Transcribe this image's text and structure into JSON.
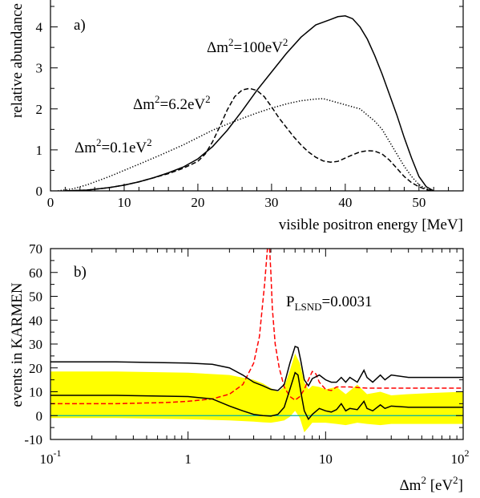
{
  "chart_data": [
    {
      "type": "line",
      "panel_label": "a)",
      "xlabel": "visible positron energy [MeV]",
      "ylabel": "relative abundance",
      "xlim": [
        0,
        56
      ],
      "ylim": [
        0,
        4.5
      ],
      "xticks": [
        0,
        10,
        20,
        30,
        40,
        50
      ],
      "yticks": [
        0,
        1,
        2,
        3,
        4
      ],
      "grid": false,
      "series": [
        {
          "name": "Δm²=100eV²",
          "label_parts": {
            "base": "Δm",
            "sup": "2",
            "mid": "=100eV",
            "sup2": "2"
          },
          "color": "#000000",
          "dash": "solid",
          "x": [
            2,
            5,
            8,
            10,
            12,
            14,
            16,
            18,
            20,
            22,
            24,
            26,
            28,
            30,
            32,
            34,
            36,
            38,
            39,
            40,
            41,
            42,
            43,
            44,
            45,
            46,
            47,
            48,
            49,
            50,
            51,
            52
          ],
          "y": [
            0,
            0.02,
            0.08,
            0.14,
            0.22,
            0.32,
            0.44,
            0.58,
            0.78,
            1.08,
            1.48,
            1.95,
            2.45,
            2.9,
            3.35,
            3.75,
            4.05,
            4.18,
            4.25,
            4.27,
            4.2,
            4.0,
            3.7,
            3.3,
            2.85,
            2.35,
            1.85,
            1.3,
            0.8,
            0.35,
            0.1,
            0
          ]
        },
        {
          "name": "Δm²=6.2eV²",
          "label_parts": {
            "base": "Δm",
            "sup": "2",
            "mid": "=6.2eV",
            "sup2": "2"
          },
          "color": "#000000",
          "dash": "dashed",
          "x": [
            2,
            5,
            8,
            10,
            12,
            14,
            16,
            18,
            20,
            21,
            22,
            23,
            24,
            25,
            26,
            27,
            28,
            29,
            30,
            31,
            32,
            33,
            34,
            35,
            36,
            37,
            38,
            39,
            40,
            41,
            42,
            43,
            44,
            45,
            46,
            47,
            48,
            49,
            50,
            51,
            52
          ],
          "y": [
            0,
            0.02,
            0.08,
            0.14,
            0.22,
            0.32,
            0.42,
            0.55,
            0.72,
            0.9,
            1.2,
            1.58,
            1.98,
            2.3,
            2.46,
            2.5,
            2.45,
            2.3,
            2.05,
            1.78,
            1.55,
            1.32,
            1.12,
            0.95,
            0.82,
            0.73,
            0.7,
            0.72,
            0.8,
            0.88,
            0.95,
            0.98,
            0.97,
            0.9,
            0.75,
            0.55,
            0.35,
            0.2,
            0.1,
            0.03,
            0
          ]
        },
        {
          "name": "Δm²=0.1eV²",
          "label_parts": {
            "base": "Δm",
            "sup": "2",
            "mid": "=0.1eV",
            "sup2": "2"
          },
          "color": "#000000",
          "dash": "dotted",
          "x": [
            1,
            3,
            5,
            8,
            10,
            12,
            15,
            18,
            20,
            22,
            25,
            28,
            30,
            32,
            34,
            36,
            37,
            38,
            40,
            42,
            44,
            45,
            46,
            47,
            48,
            49,
            50,
            51,
            52
          ],
          "y": [
            0,
            0.05,
            0.15,
            0.35,
            0.5,
            0.65,
            0.88,
            1.12,
            1.3,
            1.48,
            1.7,
            1.9,
            2.02,
            2.12,
            2.2,
            2.24,
            2.25,
            2.2,
            2.1,
            2.0,
            1.7,
            1.5,
            1.2,
            0.9,
            0.6,
            0.35,
            0.15,
            0.05,
            0
          ]
        }
      ]
    },
    {
      "type": "line",
      "panel_label": "b)",
      "xlabel_parts": {
        "base": "Δm",
        "sup": "2",
        "mid": " [eV",
        "sup2": "2",
        "tail": "]"
      },
      "ylabel": "events in KARMEN",
      "x_scale": "log",
      "xlim": [
        0.1,
        100
      ],
      "ylim": [
        -10,
        70
      ],
      "xtick_labels": [
        {
          "value": 0.1,
          "base": "10",
          "sup": "-1"
        },
        {
          "value": 1,
          "base": "1",
          "sup": ""
        },
        {
          "value": 10,
          "base": "10",
          "sup": ""
        },
        {
          "value": 100,
          "base": "10",
          "sup": "2"
        }
      ],
      "yticks": [
        -10,
        0,
        10,
        20,
        30,
        40,
        50,
        60,
        70
      ],
      "annotation": {
        "base": "P",
        "sub": "LSND",
        "tail": "=0.0031"
      },
      "grid": false,
      "band": {
        "name": "",
        "color": "#ffff00",
        "x": [
          0.1,
          0.3,
          1,
          2,
          3,
          3.5,
          4,
          4.5,
          5,
          5.5,
          6,
          6.5,
          7,
          7.5,
          8,
          9,
          10,
          12,
          14,
          17,
          20,
          25,
          30,
          40,
          60,
          100
        ],
        "upper": [
          18.5,
          18.5,
          18,
          17,
          15,
          13.5,
          11.5,
          10,
          12,
          19,
          26,
          22,
          14,
          11,
          12.5,
          12,
          11,
          12,
          9,
          13,
          9,
          10,
          8.5,
          9,
          9.5,
          10
        ],
        "lower": [
          -1,
          -1,
          -1.5,
          -2,
          -2.5,
          -2.8,
          -3,
          -2.5,
          -2,
          -0.5,
          2,
          -1,
          -7,
          -5,
          -3,
          -3,
          -3,
          -3.5,
          -4,
          -3,
          -3.5,
          -4,
          -3.5,
          -3.5,
          -3.5,
          -3.5
        ]
      },
      "series": [
        {
          "name": "",
          "color": "#000000",
          "dash": "solid",
          "x": [
            0.1,
            0.3,
            1,
            1.5,
            2,
            2.5,
            3,
            3.5,
            4,
            4.5,
            5,
            5.5,
            6,
            6.3,
            6.6,
            7,
            7.5,
            8,
            9,
            10,
            11,
            12,
            13,
            14,
            15,
            17,
            19,
            20,
            22,
            25,
            27,
            30,
            40,
            60,
            100
          ],
          "y": [
            22.5,
            22.5,
            22,
            21.5,
            20,
            17,
            14,
            12.5,
            11,
            10.5,
            13,
            22,
            29,
            28.5,
            23,
            15,
            12.5,
            15.5,
            17,
            15,
            14,
            14,
            16,
            14,
            16,
            14,
            19,
            16,
            14,
            17,
            15,
            17,
            16,
            16,
            16
          ]
        },
        {
          "name": "",
          "color": "#000000",
          "dash": "solid",
          "x": [
            0.1,
            0.3,
            1,
            1.5,
            2,
            2.5,
            3,
            3.5,
            4,
            4.5,
            5,
            5.5,
            6,
            6.3,
            6.6,
            7,
            7.5,
            8,
            9,
            10,
            11,
            12,
            13,
            14,
            15,
            17,
            19,
            20,
            22,
            25,
            27,
            30,
            40,
            60,
            100
          ],
          "y": [
            8.5,
            8.5,
            8,
            7,
            4,
            2,
            0.5,
            0,
            -0.2,
            0.5,
            3.5,
            11,
            18,
            17,
            10,
            2,
            -1.5,
            0.5,
            3,
            2,
            1.5,
            2.5,
            5,
            2,
            3,
            2.5,
            6,
            3,
            2,
            4.5,
            3,
            4,
            3.5,
            3.5,
            3.5
          ]
        },
        {
          "name": "",
          "color": "#ff0000",
          "dash": "dashed",
          "x": [
            0.1,
            0.3,
            0.7,
            1,
            1.5,
            2,
            2.5,
            3,
            3.3,
            3.6,
            3.8,
            3.9,
            4.0,
            4.1,
            4.3,
            4.6,
            5,
            5.5,
            6,
            6.5,
            7,
            7.5,
            8,
            8.5,
            9,
            10,
            11,
            12,
            15,
            20,
            30,
            50,
            100
          ],
          "y": [
            5,
            5,
            5.5,
            6,
            7,
            9,
            13,
            22,
            33,
            55,
            72,
            72,
            60,
            45,
            30,
            20,
            12,
            8,
            6.5,
            8,
            11,
            15,
            18.5,
            17.5,
            14,
            11,
            10.5,
            12,
            12,
            11.5,
            11.5,
            11.5,
            11.5
          ]
        },
        {
          "name": "",
          "color": "#00b0a0",
          "dash": "solid",
          "x": [
            0.1,
            100
          ],
          "y": [
            0,
            0
          ]
        }
      ]
    }
  ]
}
